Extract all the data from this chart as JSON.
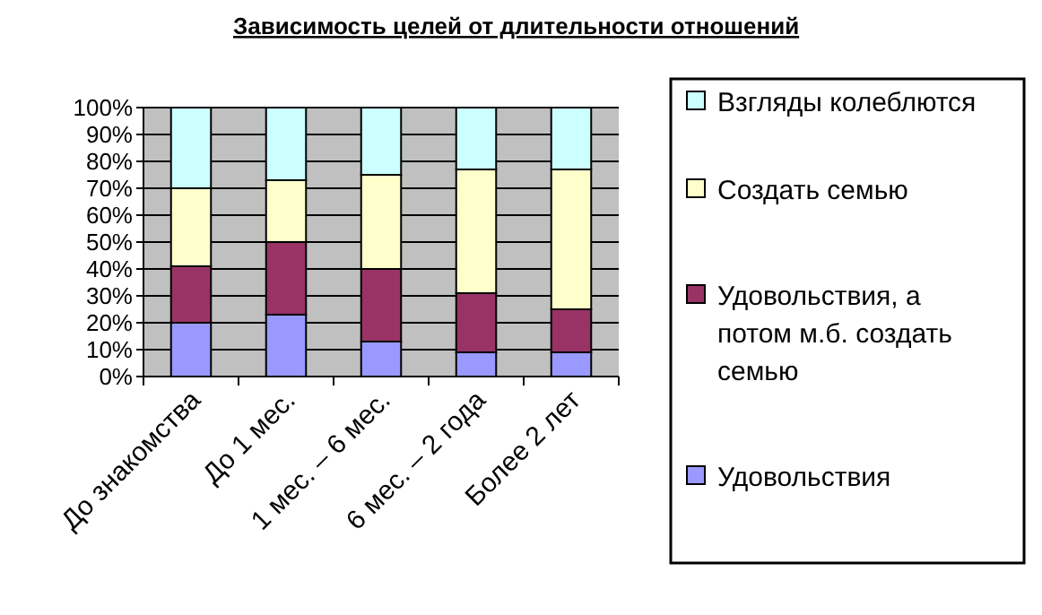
{
  "chart_data": {
    "type": "bar",
    "stacked": true,
    "title": "Зависимость целей от длительности отношений",
    "categories": [
      "До знакомства",
      "До 1 мес.",
      "1 мес. – 6 мес.",
      "6 мес. – 2 года",
      "Более 2 лет"
    ],
    "series": [
      {
        "name": "Удовольствия",
        "color": "#9999ff",
        "values": [
          20,
          23,
          13,
          9,
          9
        ]
      },
      {
        "name": "Удовольствия, а потом м.б. создать семью",
        "color": "#993366",
        "values": [
          21,
          27,
          27,
          22,
          16
        ]
      },
      {
        "name": "Создать семью",
        "color": "#ffffcc",
        "values": [
          29,
          23,
          35,
          46,
          52
        ]
      },
      {
        "name": "Взгляды колеблются",
        "color": "#ccffff",
        "values": [
          30,
          27,
          25,
          23,
          23
        ]
      }
    ],
    "ylim": [
      0,
      100
    ],
    "yticks": [
      {
        "value": 0,
        "label": "0%"
      },
      {
        "value": 10,
        "label": "10%"
      },
      {
        "value": 20,
        "label": "20%"
      },
      {
        "value": 30,
        "label": "30%"
      },
      {
        "value": 40,
        "label": "40%"
      },
      {
        "value": 50,
        "label": "50%"
      },
      {
        "value": 60,
        "label": "60%"
      },
      {
        "value": 70,
        "label": "70%"
      },
      {
        "value": 80,
        "label": "80%"
      },
      {
        "value": 90,
        "label": "90%"
      },
      {
        "value": 100,
        "label": "100%"
      }
    ],
    "grid": "y",
    "legend": "right"
  }
}
